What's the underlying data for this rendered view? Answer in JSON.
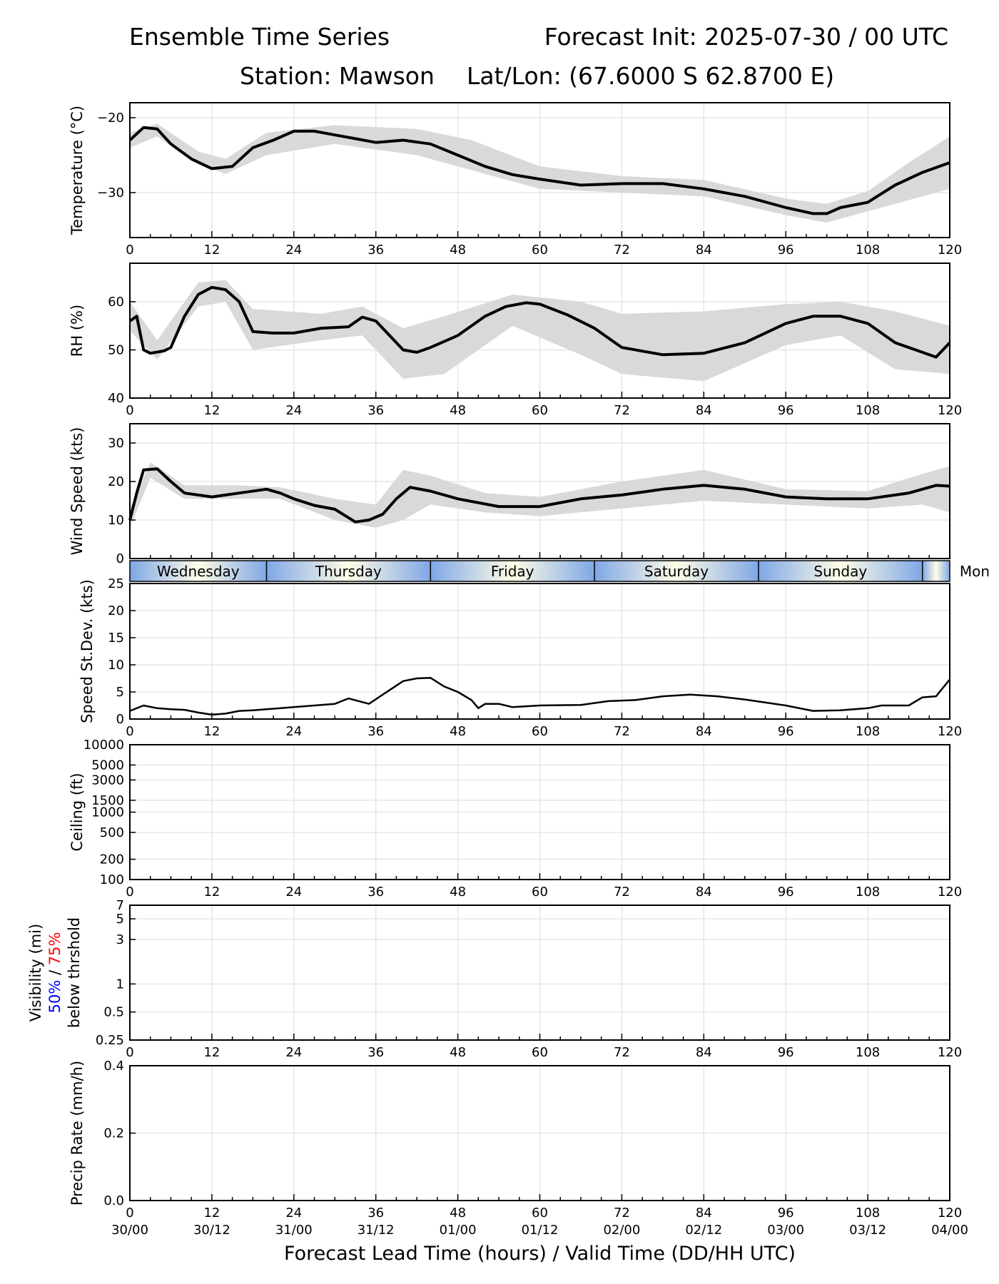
{
  "header": {
    "title": "Ensemble Time Series",
    "init": "Forecast Init: 2025-07-30 / 00 UTC",
    "station": "Station: Mawson",
    "latlon": "Lat/Lon: (67.6000 S 62.8700 E)"
  },
  "x_title": "Forecast Lead Time (hours) / Valid Time (DD/HH UTC)",
  "x_ticks": [
    "0",
    "12",
    "24",
    "36",
    "48",
    "60",
    "72",
    "84",
    "96",
    "108",
    "120"
  ],
  "valid_ticks": [
    "30/00",
    "30/12",
    "31/00",
    "31/12",
    "01/00",
    "01/12",
    "02/00",
    "02/12",
    "03/00",
    "03/12",
    "04/00"
  ],
  "day_bar": [
    "Wednesday",
    "Thursday",
    "Friday",
    "Saturday",
    "Sunday",
    "Mon"
  ],
  "visibility_label": {
    "line1": "Visibility (mi)",
    "pct50": "50%",
    "slash": " / ",
    "pct75": "75%",
    "line3": "below thrshold"
  },
  "colors": {
    "mean": "#000000",
    "spread": "#d9d9d9",
    "grid": "#e6e6e6",
    "pct50": "#0000ff",
    "pct75": "#ff0000",
    "day_blue": "#7fa7e6",
    "day_cream": "#fffde6"
  },
  "member_colors": [
    "#1f77b4",
    "#ff7f0e",
    "#2ca02c",
    "#d62728",
    "#9467bd",
    "#8c564b",
    "#e377c2",
    "#7f7f7f",
    "#bcbd22",
    "#17becf"
  ],
  "chart_data": [
    {
      "type": "line",
      "ylabel": "Temperature (°C)",
      "ylim": [
        -36,
        -18
      ],
      "yticks": [
        "−20",
        "−30"
      ],
      "ytick_values": [
        -20,
        -30
      ],
      "ylog": false,
      "mean": [
        [
          0,
          -23
        ],
        [
          2,
          -21.3
        ],
        [
          4,
          -21.5
        ],
        [
          6,
          -23.5
        ],
        [
          9,
          -25.5
        ],
        [
          12,
          -26.8
        ],
        [
          15,
          -26.5
        ],
        [
          18,
          -24
        ],
        [
          21,
          -23
        ],
        [
          24,
          -21.8
        ],
        [
          27,
          -21.8
        ],
        [
          30,
          -22.3
        ],
        [
          33,
          -22.8
        ],
        [
          36,
          -23.3
        ],
        [
          40,
          -23
        ],
        [
          44,
          -23.5
        ],
        [
          48,
          -25
        ],
        [
          52,
          -26.5
        ],
        [
          56,
          -27.6
        ],
        [
          60,
          -28.2
        ],
        [
          66,
          -29
        ],
        [
          72,
          -28.8
        ],
        [
          78,
          -28.8
        ],
        [
          84,
          -29.5
        ],
        [
          90,
          -30.5
        ],
        [
          96,
          -32
        ],
        [
          100,
          -32.8
        ],
        [
          102,
          -32.8
        ],
        [
          104,
          -32
        ],
        [
          108,
          -31.3
        ],
        [
          112,
          -29
        ],
        [
          116,
          -27.3
        ],
        [
          120,
          -26
        ]
      ],
      "spread": {
        "upper": [
          [
            0,
            -22
          ],
          [
            4,
            -20.8
          ],
          [
            10,
            -24.5
          ],
          [
            14,
            -25.5
          ],
          [
            20,
            -22
          ],
          [
            30,
            -21
          ],
          [
            42,
            -21.5
          ],
          [
            50,
            -23
          ],
          [
            60,
            -26.5
          ],
          [
            72,
            -27.8
          ],
          [
            84,
            -28.3
          ],
          [
            96,
            -30.8
          ],
          [
            102,
            -31.5
          ],
          [
            108,
            -29.8
          ],
          [
            114,
            -26
          ],
          [
            120,
            -22.5
          ]
        ],
        "lower": [
          [
            0,
            -24
          ],
          [
            4,
            -22.5
          ],
          [
            10,
            -26.2
          ],
          [
            14,
            -27.5
          ],
          [
            20,
            -25
          ],
          [
            30,
            -23.5
          ],
          [
            42,
            -25
          ],
          [
            50,
            -27
          ],
          [
            60,
            -29.5
          ],
          [
            72,
            -30
          ],
          [
            84,
            -30.5
          ],
          [
            96,
            -33
          ],
          [
            102,
            -34
          ],
          [
            108,
            -32.5
          ],
          [
            114,
            -31
          ],
          [
            120,
            -29.5
          ]
        ]
      }
    },
    {
      "type": "line",
      "ylabel": "RH (%)",
      "ylim": [
        40,
        68
      ],
      "yticks": [
        "40",
        "50",
        "60"
      ],
      "ytick_values": [
        40,
        50,
        60
      ],
      "ylog": false,
      "mean": [
        [
          0,
          56
        ],
        [
          1,
          57
        ],
        [
          2,
          50
        ],
        [
          3,
          49.3
        ],
        [
          5,
          49.8
        ],
        [
          6,
          50.5
        ],
        [
          8,
          57
        ],
        [
          10,
          61.5
        ],
        [
          12,
          63
        ],
        [
          14,
          62.5
        ],
        [
          16,
          60
        ],
        [
          18,
          53.8
        ],
        [
          21,
          53.5
        ],
        [
          24,
          53.5
        ],
        [
          28,
          54.5
        ],
        [
          32,
          54.8
        ],
        [
          34,
          56.8
        ],
        [
          36,
          56
        ],
        [
          38,
          53
        ],
        [
          40,
          50
        ],
        [
          42,
          49.5
        ],
        [
          44,
          50.5
        ],
        [
          48,
          53
        ],
        [
          52,
          57
        ],
        [
          55,
          59
        ],
        [
          58,
          59.8
        ],
        [
          60,
          59.5
        ],
        [
          64,
          57.3
        ],
        [
          68,
          54.5
        ],
        [
          72,
          50.5
        ],
        [
          78,
          49
        ],
        [
          84,
          49.3
        ],
        [
          90,
          51.5
        ],
        [
          96,
          55.5
        ],
        [
          100,
          57
        ],
        [
          104,
          57
        ],
        [
          108,
          55.5
        ],
        [
          112,
          51.5
        ],
        [
          116,
          49.5
        ],
        [
          118,
          48.5
        ],
        [
          120,
          51.5
        ]
      ],
      "spread": {
        "upper": [
          [
            0,
            60
          ],
          [
            4,
            52
          ],
          [
            10,
            64
          ],
          [
            14,
            64.5
          ],
          [
            18,
            58.5
          ],
          [
            28,
            57.5
          ],
          [
            34,
            59
          ],
          [
            40,
            54.5
          ],
          [
            46,
            57
          ],
          [
            56,
            61.5
          ],
          [
            66,
            60
          ],
          [
            72,
            57.5
          ],
          [
            84,
            58
          ],
          [
            96,
            59.5
          ],
          [
            104,
            60
          ],
          [
            112,
            58
          ],
          [
            120,
            55
          ]
        ],
        "lower": [
          [
            0,
            54
          ],
          [
            4,
            48
          ],
          [
            10,
            59
          ],
          [
            14,
            60
          ],
          [
            18,
            50
          ],
          [
            28,
            52
          ],
          [
            34,
            53
          ],
          [
            40,
            44
          ],
          [
            46,
            45
          ],
          [
            56,
            55
          ],
          [
            66,
            49
          ],
          [
            72,
            45
          ],
          [
            84,
            43.5
          ],
          [
            96,
            51
          ],
          [
            104,
            53
          ],
          [
            112,
            46
          ],
          [
            120,
            45
          ]
        ]
      }
    },
    {
      "type": "line",
      "ylabel": "Wind Speed (kts)",
      "ylim": [
        0,
        35
      ],
      "yticks": [
        "0",
        "10",
        "20",
        "30"
      ],
      "ytick_values": [
        0,
        10,
        20,
        30
      ],
      "ylog": false,
      "mean": [
        [
          0,
          10
        ],
        [
          1,
          17
        ],
        [
          2,
          23
        ],
        [
          4,
          23.3
        ],
        [
          6,
          20
        ],
        [
          8,
          17
        ],
        [
          12,
          16
        ],
        [
          16,
          17
        ],
        [
          20,
          18
        ],
        [
          22,
          17
        ],
        [
          24,
          15.5
        ],
        [
          27,
          13.8
        ],
        [
          30,
          12.8
        ],
        [
          33,
          9.5
        ],
        [
          35,
          10
        ],
        [
          37,
          11.5
        ],
        [
          39,
          15.5
        ],
        [
          41,
          18.5
        ],
        [
          44,
          17.5
        ],
        [
          48,
          15.5
        ],
        [
          54,
          13.5
        ],
        [
          60,
          13.5
        ],
        [
          66,
          15.5
        ],
        [
          72,
          16.5
        ],
        [
          78,
          18
        ],
        [
          84,
          19
        ],
        [
          90,
          18
        ],
        [
          96,
          16
        ],
        [
          102,
          15.5
        ],
        [
          108,
          15.5
        ],
        [
          114,
          17
        ],
        [
          118,
          19
        ],
        [
          120,
          18.8
        ]
      ],
      "spread": {
        "upper": [
          [
            0,
            13
          ],
          [
            3,
            25
          ],
          [
            8,
            19
          ],
          [
            16,
            19
          ],
          [
            22,
            18.5
          ],
          [
            30,
            15.5
          ],
          [
            36,
            14
          ],
          [
            40,
            23
          ],
          [
            44,
            21.5
          ],
          [
            52,
            17
          ],
          [
            60,
            16
          ],
          [
            72,
            20
          ],
          [
            84,
            23
          ],
          [
            96,
            18
          ],
          [
            108,
            17.5
          ],
          [
            116,
            22
          ],
          [
            120,
            24
          ]
        ],
        "lower": [
          [
            0,
            8
          ],
          [
            3,
            21
          ],
          [
            8,
            15.5
          ],
          [
            16,
            15.5
          ],
          [
            22,
            15.5
          ],
          [
            30,
            10
          ],
          [
            36,
            8
          ],
          [
            40,
            10
          ],
          [
            44,
            14
          ],
          [
            52,
            12
          ],
          [
            60,
            11
          ],
          [
            72,
            13
          ],
          [
            84,
            15
          ],
          [
            96,
            14
          ],
          [
            108,
            13
          ],
          [
            116,
            14
          ],
          [
            120,
            12
          ]
        ]
      }
    },
    {
      "type": "line",
      "ylabel": "Speed St.Dev. (kts)",
      "ylim": [
        0,
        25
      ],
      "yticks": [
        "0",
        "5",
        "10",
        "15",
        "20",
        "25"
      ],
      "ytick_values": [
        0,
        5,
        10,
        15,
        20,
        25
      ],
      "ylog": false,
      "mean": [
        [
          0,
          1.5
        ],
        [
          2,
          2.5
        ],
        [
          4,
          2
        ],
        [
          6,
          1.8
        ],
        [
          8,
          1.7
        ],
        [
          10,
          1.2
        ],
        [
          12,
          0.8
        ],
        [
          14,
          1
        ],
        [
          16,
          1.5
        ],
        [
          18,
          1.6
        ],
        [
          20,
          1.8
        ],
        [
          24,
          2.2
        ],
        [
          27,
          2.5
        ],
        [
          30,
          2.8
        ],
        [
          32,
          3.8
        ],
        [
          35,
          2.8
        ],
        [
          37,
          4.5
        ],
        [
          40,
          7
        ],
        [
          42,
          7.5
        ],
        [
          44,
          7.6
        ],
        [
          46,
          6
        ],
        [
          48,
          5
        ],
        [
          50,
          3.5
        ],
        [
          51,
          2
        ],
        [
          52,
          2.8
        ],
        [
          54,
          2.8
        ],
        [
          56,
          2.2
        ],
        [
          60,
          2.5
        ],
        [
          66,
          2.6
        ],
        [
          70,
          3.3
        ],
        [
          74,
          3.5
        ],
        [
          78,
          4.2
        ],
        [
          82,
          4.5
        ],
        [
          86,
          4.2
        ],
        [
          90,
          3.6
        ],
        [
          96,
          2.5
        ],
        [
          100,
          1.5
        ],
        [
          104,
          1.6
        ],
        [
          108,
          2
        ],
        [
          110,
          2.5
        ],
        [
          114,
          2.5
        ],
        [
          116,
          4
        ],
        [
          118,
          4.2
        ],
        [
          120,
          7.3
        ]
      ]
    },
    {
      "type": "line",
      "ylabel": "Ceiling (ft)",
      "ylim": [
        100,
        10000
      ],
      "yticks": [
        "100",
        "200",
        "500",
        "1000",
        "1500",
        "3000",
        "5000",
        "10000"
      ],
      "ytick_values": [
        100,
        200,
        500,
        1000,
        1500,
        3000,
        5000,
        10000
      ],
      "ylog": true,
      "mean": []
    },
    {
      "type": "line",
      "ylabel": "Visibility (mi)",
      "ylim": [
        0.25,
        7
      ],
      "yticks": [
        "0.25",
        "0.5",
        "1",
        "3",
        "5",
        "7"
      ],
      "ytick_values": [
        0.25,
        0.5,
        1,
        3,
        5,
        7
      ],
      "ylog": true,
      "mean": []
    },
    {
      "type": "line",
      "ylabel": "Precip Rate (mm/h)",
      "ylim": [
        0,
        0.4
      ],
      "yticks": [
        "0.0",
        "0.2",
        "0.4"
      ],
      "ytick_values": [
        0,
        0.2,
        0.4
      ],
      "ylog": false,
      "mean": []
    }
  ]
}
